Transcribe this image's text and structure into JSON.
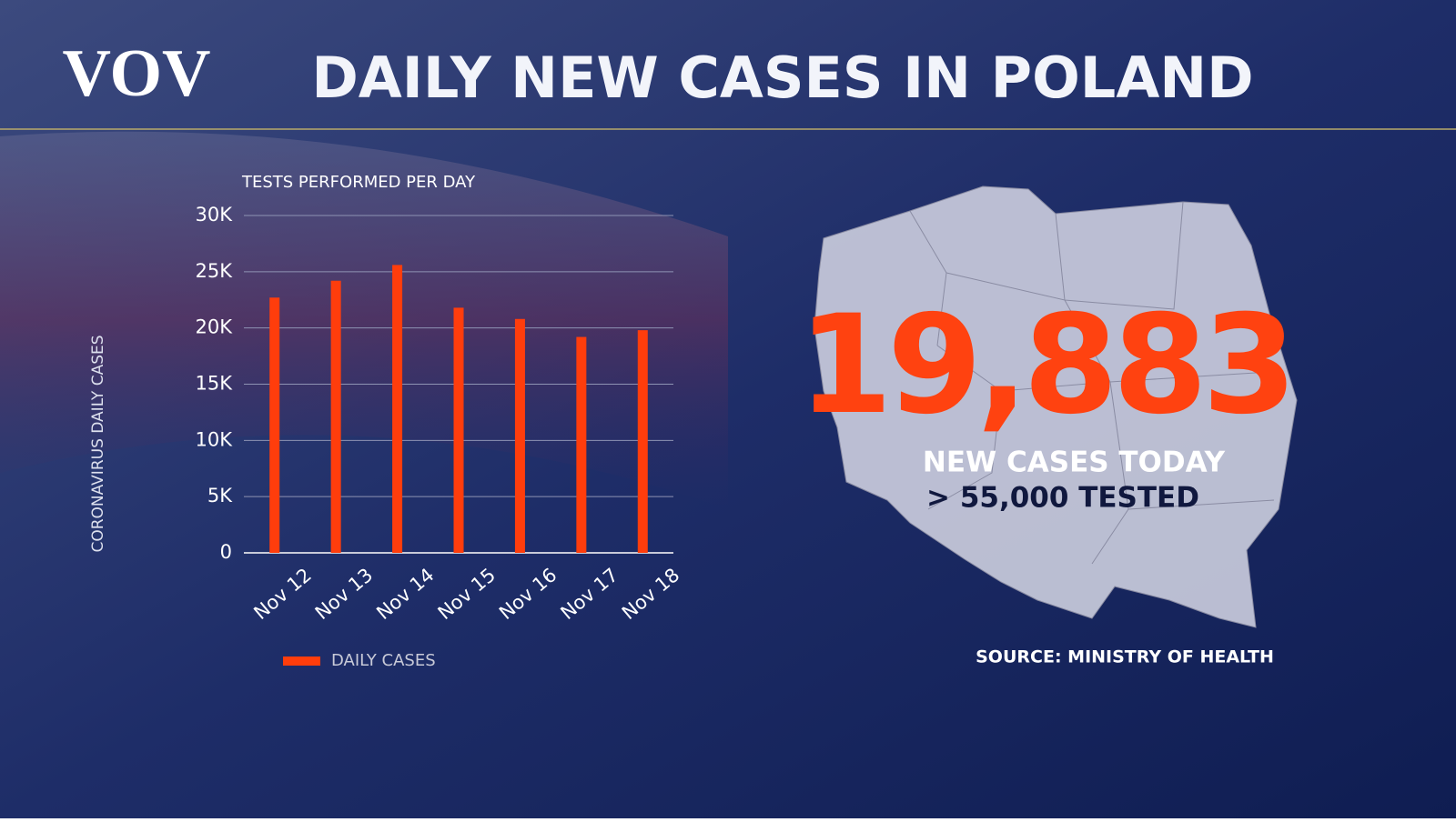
{
  "logo": "VOV",
  "chart_data": {
    "type": "bar",
    "title": "DAILY NEW CASES IN POLAND",
    "subtitle": "TESTS PERFORMED PER DAY",
    "y_label": "CORONAVIRUS DAILY CASES",
    "categories": [
      "Nov 12",
      "Nov 13",
      "Nov 14",
      "Nov 15",
      "Nov 16",
      "Nov 17",
      "Nov 18"
    ],
    "series": [
      {
        "name": "DAILY CASES",
        "color": "#ff3d0c",
        "values": [
          22700,
          24200,
          25600,
          21800,
          20800,
          19200,
          19800
        ]
      }
    ],
    "ylim": [
      0,
      30000
    ],
    "yticks": [
      0,
      {
        "value": 5000,
        "label": "5K"
      },
      {
        "value": 10000,
        "label": "10K"
      },
      {
        "value": 15000,
        "label": "15K"
      },
      {
        "value": 20000,
        "label": "20K"
      },
      {
        "value": 25000,
        "label": "25K"
      },
      {
        "value": 30000,
        "label": "30K"
      }
    ],
    "grid": true,
    "legend": "bottom"
  },
  "highlight": {
    "number": "19,883",
    "caption": "NEW CASES TODAY",
    "tested": "> 55,000 TESTED",
    "source": "SOURCE: MINISTRY OF HEALTH"
  }
}
